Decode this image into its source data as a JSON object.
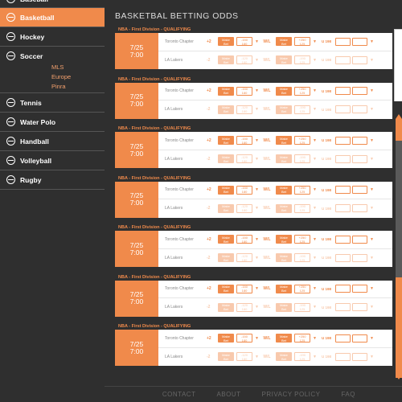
{
  "sidebar": {
    "items": [
      {
        "label": "Baseball",
        "icon": "baseball-icon",
        "active": false
      },
      {
        "label": "Basketball",
        "icon": "basketball-icon",
        "active": true
      },
      {
        "label": "Hockey",
        "icon": "hockey-icon",
        "active": false
      },
      {
        "label": "Soccer",
        "icon": "soccer-icon",
        "active": false,
        "sub": [
          "MLS",
          "Europe",
          "Pinra"
        ]
      },
      {
        "label": "Tennis",
        "icon": "tennis-icon",
        "active": false
      },
      {
        "label": "Water Polo",
        "icon": "water-polo-icon",
        "active": false
      },
      {
        "label": "Handball",
        "icon": "handball-icon",
        "active": false
      },
      {
        "label": "Volleyball",
        "icon": "volleyball-icon",
        "active": false
      },
      {
        "label": "Rugby",
        "icon": "rugby-icon",
        "active": false
      }
    ]
  },
  "main": {
    "title": "BASKETBAL BETTING ODDS",
    "matches": [
      {
        "league": "NBA - First Division - QUALIFYING",
        "date": "7/25",
        "time": "7:00",
        "teams": [
          {
            "name": "Toronto Chapter",
            "spread": "+2",
            "make_bet": [
              "Make",
              "Bet"
            ],
            "odds": [
              "-150",
              "180"
            ],
            "wl": "W/L",
            "make_bet2": [
              "Make",
              "Bet"
            ],
            "odds2": [
              "+250",
              "125"
            ],
            "ou": "U 198"
          },
          {
            "name": "LA Lakers",
            "spread": "-2",
            "make_bet": [
              "Make",
              "Bet"
            ],
            "odds": [
              "-120",
              "180"
            ],
            "wl": "W/L",
            "make_bet2": [
              "Make",
              "Bet"
            ],
            "odds2": [
              "-190",
              "125"
            ],
            "ou": "U 198"
          }
        ]
      },
      {
        "league": "NBA - First Division - QUALIFYING",
        "date": "7/25",
        "time": "7:00",
        "teams": [
          {
            "name": "Toronto Chapter",
            "spread": "+2",
            "make_bet": [
              "Make",
              "Bet"
            ],
            "odds": [
              "-150",
              "180"
            ],
            "wl": "W/L",
            "make_bet2": [
              "Make",
              "Bet"
            ],
            "odds2": [
              "+250",
              "125"
            ],
            "ou": "U 198"
          },
          {
            "name": "LA Lakers",
            "spread": "-2",
            "make_bet": [
              "Make",
              "Bet"
            ],
            "odds": [
              "-120",
              "180"
            ],
            "wl": "W/L",
            "make_bet2": [
              "Make",
              "Bet"
            ],
            "odds2": [
              "-190",
              "125"
            ],
            "ou": "U 198"
          }
        ]
      },
      {
        "league": "NBA - First Division - QUALIFYING",
        "date": "7/25",
        "time": "7:00",
        "teams": [
          {
            "name": "Toronto Chapter",
            "spread": "+2",
            "make_bet": [
              "Make",
              "Bet"
            ],
            "odds": [
              "-150",
              "180"
            ],
            "wl": "W/L",
            "make_bet2": [
              "Make",
              "Bet"
            ],
            "odds2": [
              "+250",
              "125"
            ],
            "ou": "U 198"
          },
          {
            "name": "LA Lakers",
            "spread": "-2",
            "make_bet": [
              "Make",
              "Bet"
            ],
            "odds": [
              "-120",
              "180"
            ],
            "wl": "W/L",
            "make_bet2": [
              "Make",
              "Bet"
            ],
            "odds2": [
              "-190",
              "125"
            ],
            "ou": "U 198"
          }
        ]
      },
      {
        "league": "NBA - First Division - QUALIFYING",
        "date": "7/25",
        "time": "7:00",
        "teams": [
          {
            "name": "Toronto Chapter",
            "spread": "+2",
            "make_bet": [
              "Make",
              "Bet"
            ],
            "odds": [
              "-150",
              "180"
            ],
            "wl": "W/L",
            "make_bet2": [
              "Make",
              "Bet"
            ],
            "odds2": [
              "+250",
              "125"
            ],
            "ou": "U 198"
          },
          {
            "name": "LA Lakers",
            "spread": "-2",
            "make_bet": [
              "Make",
              "Bet"
            ],
            "odds": [
              "-120",
              "180"
            ],
            "wl": "W/L",
            "make_bet2": [
              "Make",
              "Bet"
            ],
            "odds2": [
              "-190",
              "125"
            ],
            "ou": "U 198"
          }
        ]
      },
      {
        "league": "NBA - First Division - QUALIFYING",
        "date": "7/25",
        "time": "7:00",
        "teams": [
          {
            "name": "Toronto Chapter",
            "spread": "+2",
            "make_bet": [
              "Make",
              "Bet"
            ],
            "odds": [
              "-150",
              "180"
            ],
            "wl": "W/L",
            "make_bet2": [
              "Make",
              "Bet"
            ],
            "odds2": [
              "+250",
              "125"
            ],
            "ou": "U 198"
          },
          {
            "name": "LA Lakers",
            "spread": "-2",
            "make_bet": [
              "Make",
              "Bet"
            ],
            "odds": [
              "-120",
              "180"
            ],
            "wl": "W/L",
            "make_bet2": [
              "Make",
              "Bet"
            ],
            "odds2": [
              "-190",
              "125"
            ],
            "ou": "U 198"
          }
        ]
      },
      {
        "league": "NBA - First Division - QUALIFYING",
        "date": "7/25",
        "time": "7:00",
        "teams": [
          {
            "name": "Toronto Chapter",
            "spread": "+2",
            "make_bet": [
              "Make",
              "Bet"
            ],
            "odds": [
              "-150",
              "180"
            ],
            "wl": "W/L",
            "make_bet2": [
              "Make",
              "Bet"
            ],
            "odds2": [
              "+250",
              "125"
            ],
            "ou": "U 198"
          },
          {
            "name": "LA Lakers",
            "spread": "-2",
            "make_bet": [
              "Make",
              "Bet"
            ],
            "odds": [
              "-120",
              "180"
            ],
            "wl": "W/L",
            "make_bet2": [
              "Make",
              "Bet"
            ],
            "odds2": [
              "-190",
              "125"
            ],
            "ou": "U 198"
          }
        ]
      },
      {
        "league": "NBA - First Division - QUALIFYING",
        "date": "7/25",
        "time": "7:00",
        "teams": [
          {
            "name": "Toronto Chapter",
            "spread": "+2",
            "make_bet": [
              "Make",
              "Bet"
            ],
            "odds": [
              "-150",
              "180"
            ],
            "wl": "W/L",
            "make_bet2": [
              "Make",
              "Bet"
            ],
            "odds2": [
              "+250",
              "125"
            ],
            "ou": "U 198"
          },
          {
            "name": "LA Lakers",
            "spread": "-2",
            "make_bet": [
              "Make",
              "Bet"
            ],
            "odds": [
              "-120",
              "180"
            ],
            "wl": "W/L",
            "make_bet2": [
              "Make",
              "Bet"
            ],
            "odds2": [
              "-190",
              "125"
            ],
            "ou": "U 198"
          }
        ]
      }
    ]
  },
  "footer": {
    "links": [
      "CONTACT",
      "ABOUT",
      "PRIVACY POLICY",
      "FAQ"
    ]
  },
  "colors": {
    "accent": "#f08a4b",
    "background": "#2f2f2f",
    "card": "#ffffff"
  }
}
